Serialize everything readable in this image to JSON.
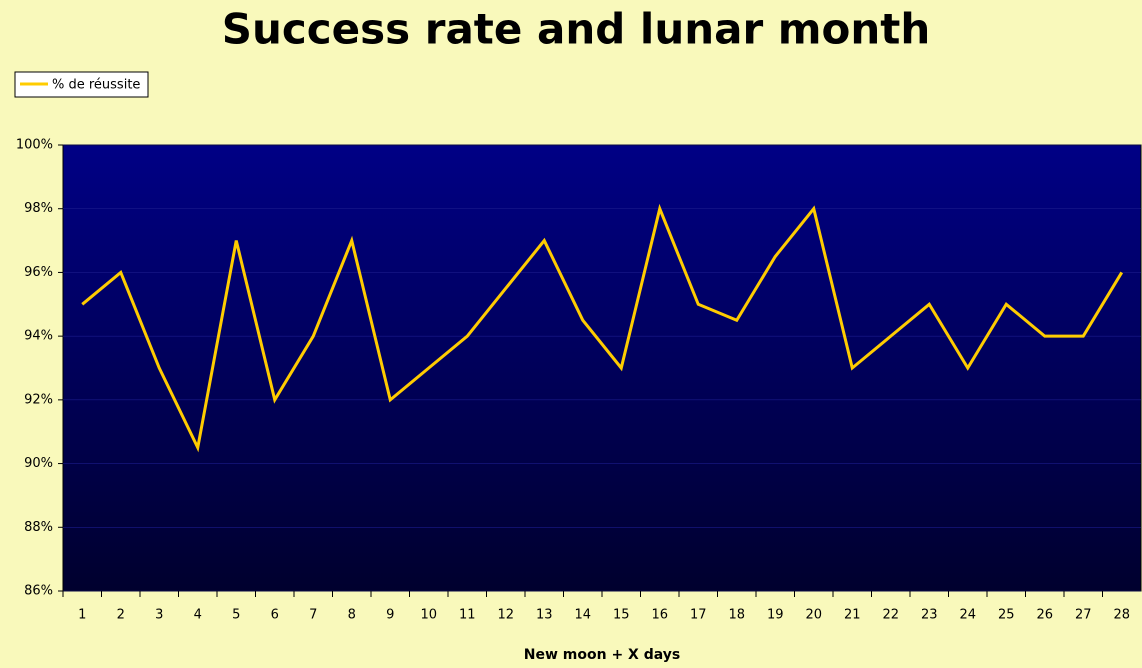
{
  "chart_data": {
    "type": "line",
    "title": "Success rate and lunar month",
    "x_label": "New moon + X days",
    "categories": [
      "1",
      "2",
      "3",
      "4",
      "5",
      "6",
      "7",
      "8",
      "9",
      "10",
      "11",
      "12",
      "13",
      "14",
      "15",
      "16",
      "17",
      "18",
      "19",
      "20",
      "21",
      "22",
      "23",
      "24",
      "25",
      "26",
      "27",
      "28"
    ],
    "series": [
      {
        "name": "% de réussite",
        "color": "#ffcc00",
        "values": [
          95,
          96,
          93,
          90.5,
          97,
          92,
          94,
          97,
          92,
          93,
          94,
          95.5,
          97,
          94.5,
          93,
          98,
          95,
          94.5,
          96.5,
          98,
          93,
          94,
          95,
          93,
          95,
          94,
          94,
          96
        ]
      }
    ],
    "ylim": [
      86,
      100
    ],
    "yticks": [
      {
        "value": 86,
        "label": "86%"
      },
      {
        "value": 88,
        "label": "88%"
      },
      {
        "value": 90,
        "label": "90%"
      },
      {
        "value": 92,
        "label": "92%"
      },
      {
        "value": 94,
        "label": "94%"
      },
      {
        "value": 96,
        "label": "96%"
      },
      {
        "value": 98,
        "label": "98%"
      },
      {
        "value": 100,
        "label": "100%"
      }
    ],
    "grid": true,
    "legend": "top-left"
  }
}
